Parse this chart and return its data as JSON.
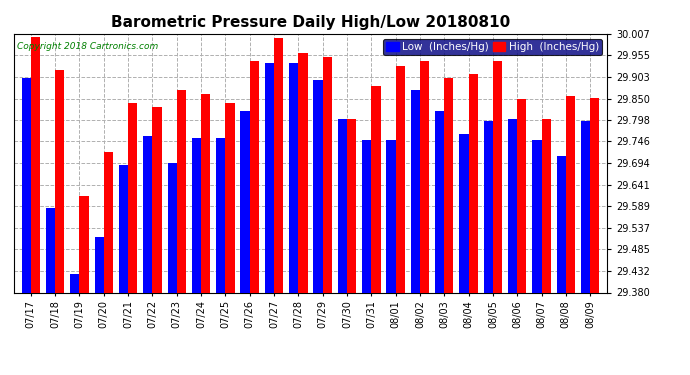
{
  "title": "Barometric Pressure Daily High/Low 20180810",
  "copyright": "Copyright 2018 Cartronics.com",
  "legend_low": "Low  (Inches/Hg)",
  "legend_high": "High  (Inches/Hg)",
  "dates": [
    "07/17",
    "07/18",
    "07/19",
    "07/20",
    "07/21",
    "07/22",
    "07/23",
    "07/24",
    "07/25",
    "07/26",
    "07/27",
    "07/28",
    "07/29",
    "07/30",
    "07/31",
    "08/01",
    "08/02",
    "08/03",
    "08/04",
    "08/05",
    "08/06",
    "08/07",
    "08/08",
    "08/09"
  ],
  "low_values": [
    29.9,
    29.585,
    29.425,
    29.515,
    29.69,
    29.76,
    29.695,
    29.755,
    29.755,
    29.82,
    29.935,
    29.935,
    29.895,
    29.8,
    29.75,
    29.75,
    29.87,
    29.82,
    29.765,
    29.795,
    29.8,
    29.75,
    29.71,
    29.795
  ],
  "high_values": [
    30.0,
    29.92,
    29.615,
    29.72,
    29.84,
    29.83,
    29.87,
    29.86,
    29.84,
    29.94,
    29.997,
    29.96,
    29.95,
    29.8,
    29.88,
    29.93,
    29.94,
    29.9,
    29.91,
    29.94,
    29.85,
    29.8,
    29.855,
    29.852
  ],
  "ymin": 29.38,
  "ymax": 30.007,
  "yticks": [
    29.38,
    29.432,
    29.485,
    29.537,
    29.589,
    29.641,
    29.694,
    29.746,
    29.798,
    29.85,
    29.903,
    29.955,
    30.007
  ],
  "bar_width": 0.38,
  "low_color": "#0000ff",
  "high_color": "#ff0000",
  "bg_color": "#ffffff",
  "grid_color": "#b0b0b0",
  "title_fontsize": 11,
  "tick_fontsize": 7,
  "legend_fontsize": 7.5,
  "copyright_fontsize": 6.5,
  "figwidth": 6.9,
  "figheight": 3.75,
  "dpi": 100
}
